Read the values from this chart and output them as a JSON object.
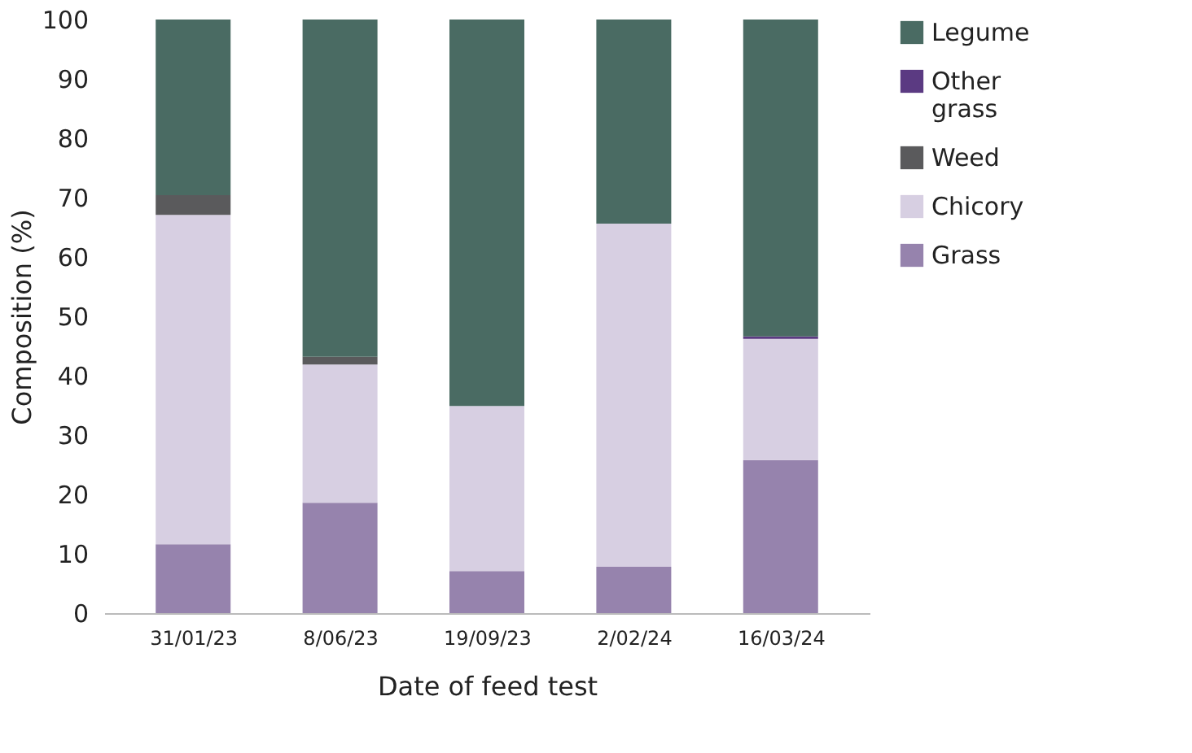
{
  "chart_data": {
    "type": "bar",
    "stacked": true,
    "xlabel": "Date of feed test",
    "ylabel": "Composition (%)",
    "categories": [
      "31/01/23",
      "8/06/23",
      "19/09/23",
      "2/02/24",
      "16/03/24"
    ],
    "series": [
      {
        "name": "Grass",
        "color": "#9683ad",
        "values": [
          11.6,
          18.6,
          7.1,
          7.8,
          25.8
        ]
      },
      {
        "name": "Chicory",
        "color": "#d7cfe2",
        "values": [
          55.5,
          23.3,
          27.8,
          57.8,
          20.4
        ]
      },
      {
        "name": "Weed",
        "color": "#5a5a5c",
        "values": [
          3.3,
          1.3,
          0,
          0,
          0
        ]
      },
      {
        "name": "Other grass",
        "color": "#5b3a82",
        "values": [
          0,
          0,
          0,
          0,
          0.4
        ]
      },
      {
        "name": "Legume",
        "color": "#4a6b63",
        "values": [
          29.6,
          56.8,
          65.1,
          34.4,
          53.4
        ]
      }
    ],
    "ylim": [
      0,
      100
    ],
    "yticks": [
      0,
      10,
      20,
      30,
      40,
      50,
      60,
      70,
      80,
      90,
      100
    ],
    "grid": false,
    "legend": "right"
  }
}
